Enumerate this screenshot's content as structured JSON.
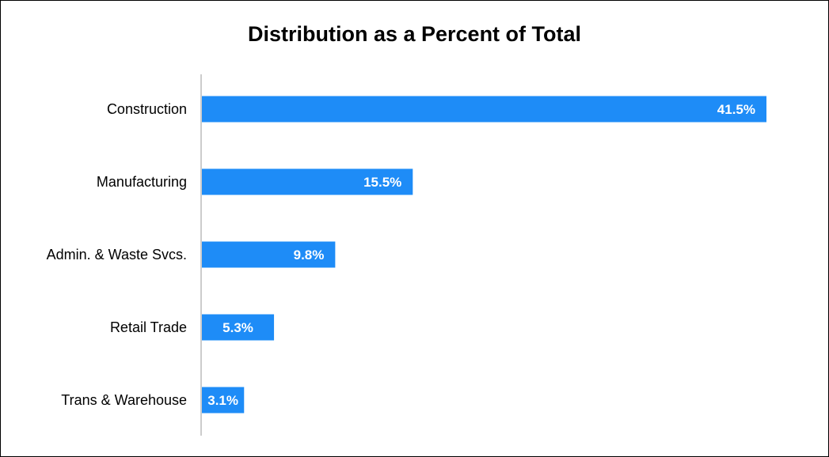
{
  "chart_data": {
    "type": "bar",
    "orientation": "horizontal",
    "title": "Distribution as a Percent of Total",
    "xlabel": "",
    "ylabel": "",
    "categories": [
      "Construction",
      "Manufacturing",
      "Admin. & Waste Svcs.",
      "Retail Trade",
      "Trans & Warehouse"
    ],
    "values": [
      41.5,
      15.5,
      9.8,
      5.3,
      3.1
    ],
    "data_labels": [
      "41.5%",
      "15.5%",
      "9.8%",
      "5.3%",
      "3.1%"
    ],
    "xlim": [
      0,
      41.5
    ],
    "grid": false,
    "legend": "none",
    "bar_color": "#1e8cf7",
    "axis_color": "#cccccc",
    "label_color": "#ffffff"
  }
}
